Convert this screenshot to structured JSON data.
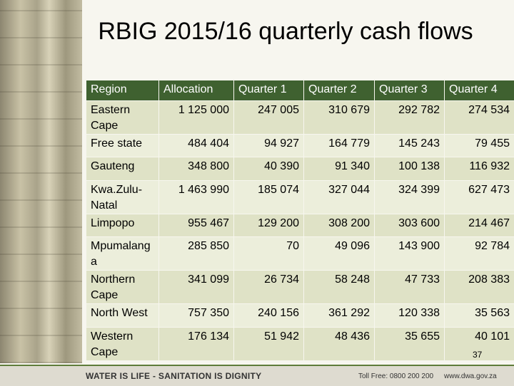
{
  "title": "RBIG 2015/16 quarterly cash flows",
  "table": {
    "columns": [
      "Region",
      "Allocation",
      "Quarter 1",
      "Quarter 2",
      "Quarter 3",
      "Quarter 4"
    ],
    "rows": [
      [
        "Eastern Cape",
        "1 125 000",
        "247 005",
        "310 679",
        "292 782",
        "274 534"
      ],
      [
        "Free state",
        "484 404",
        "94 927",
        "164 779",
        "145 243",
        "79 455"
      ],
      [
        "Gauteng",
        "348 800",
        "40 390",
        "91 340",
        "100 138",
        "116 932"
      ],
      [
        "Kwa.Zulu-Natal",
        "1 463 990",
        "185 074",
        "327 044",
        "324 399",
        "627 473"
      ],
      [
        "Limpopo",
        "955 467",
        "129 200",
        "308 200",
        "303 600",
        "214 467"
      ],
      [
        "Mpumalanga",
        "285 850",
        "70",
        "49 096",
        "143 900",
        "92 784"
      ],
      [
        "Northern Cape",
        "341 099",
        "26 734",
        "58 248",
        "47 733",
        "208 383"
      ],
      [
        "North West",
        "757 350",
        "240 156",
        "361 292",
        "120 338",
        "35 563"
      ],
      [
        "Western Cape",
        "176 134",
        "51 942",
        "48 436",
        "35 655",
        "40 101"
      ]
    ]
  },
  "page_number": "37",
  "footer": {
    "slogan": "WATER IS LIFE - SANITATION IS DIGNITY",
    "tollfree": "Toll Free: 0800 200 200",
    "website": "www.dwa.gov.za"
  }
}
